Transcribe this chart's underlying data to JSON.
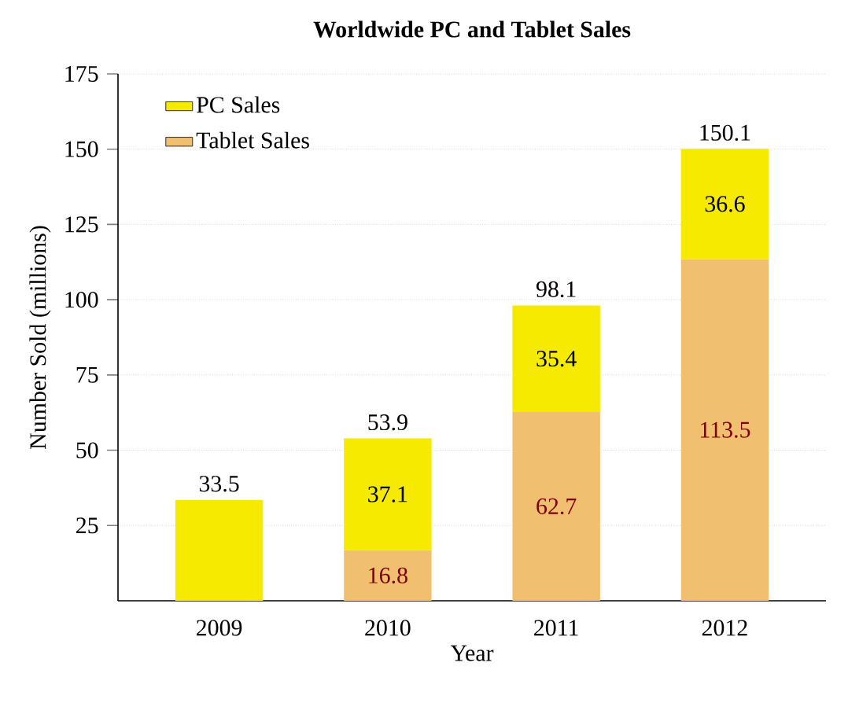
{
  "chart_data": {
    "type": "bar",
    "title": "Worldwide PC and Tablet Sales",
    "xlabel": "Year",
    "ylabel": "Number Sold (millions)",
    "categories": [
      "2009",
      "2010",
      "2011",
      "2012"
    ],
    "stacked": true,
    "series": [
      {
        "name": "Tablet Sales",
        "color": "#f0c070",
        "values": [
          null,
          16.8,
          62.7,
          113.5
        ],
        "value_labels": [
          null,
          "16.8",
          "62.7",
          "113.5"
        ]
      },
      {
        "name": "PC Sales",
        "color": "#f5ea00",
        "values": [
          33.5,
          37.1,
          35.4,
          36.6
        ],
        "value_labels": [
          null,
          "37.1",
          "35.4",
          "36.6"
        ]
      }
    ],
    "totals": [
      "33.5",
      "53.9",
      "98.1",
      "150.1"
    ],
    "ylim": [
      0,
      175
    ],
    "yticks": [
      25,
      50,
      75,
      100,
      125,
      150,
      175
    ],
    "grid": "y",
    "legend": "top left"
  }
}
